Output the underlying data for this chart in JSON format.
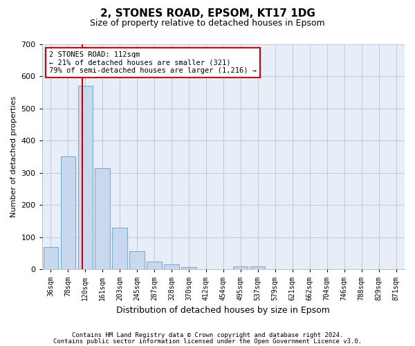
{
  "title_line1": "2, STONES ROAD, EPSOM, KT17 1DG",
  "title_line2": "Size of property relative to detached houses in Epsom",
  "xlabel": "Distribution of detached houses by size in Epsom",
  "ylabel": "Number of detached properties",
  "bar_labels": [
    "36sqm",
    "78sqm",
    "120sqm",
    "161sqm",
    "203sqm",
    "245sqm",
    "287sqm",
    "328sqm",
    "370sqm",
    "412sqm",
    "454sqm",
    "495sqm",
    "537sqm",
    "579sqm",
    "621sqm",
    "662sqm",
    "704sqm",
    "746sqm",
    "788sqm",
    "829sqm",
    "871sqm"
  ],
  "bar_values": [
    70,
    352,
    571,
    315,
    130,
    57,
    25,
    15,
    8,
    0,
    0,
    10,
    10,
    0,
    0,
    0,
    0,
    0,
    0,
    0,
    0
  ],
  "bar_color": "#c8d8ee",
  "bar_edgecolor": "#7aadce",
  "vline_x": 1.85,
  "vline_color": "#cc0000",
  "ylim": [
    0,
    700
  ],
  "yticks": [
    0,
    100,
    200,
    300,
    400,
    500,
    600,
    700
  ],
  "annotation_text": "2 STONES ROAD: 112sqm\n← 21% of detached houses are smaller (321)\n79% of semi-detached houses are larger (1,216) →",
  "annotation_box_color": "#cc0000",
  "footer_line1": "Contains HM Land Registry data © Crown copyright and database right 2024.",
  "footer_line2": "Contains public sector information licensed under the Open Government Licence v3.0.",
  "bg_color": "#ffffff",
  "plot_bg_color": "#e8eef8",
  "grid_color": "#c0c8d8",
  "title1_fontsize": 11,
  "title2_fontsize": 9,
  "ylabel_fontsize": 8,
  "xlabel_fontsize": 9,
  "tick_fontsize": 7,
  "footer_fontsize": 6.5
}
